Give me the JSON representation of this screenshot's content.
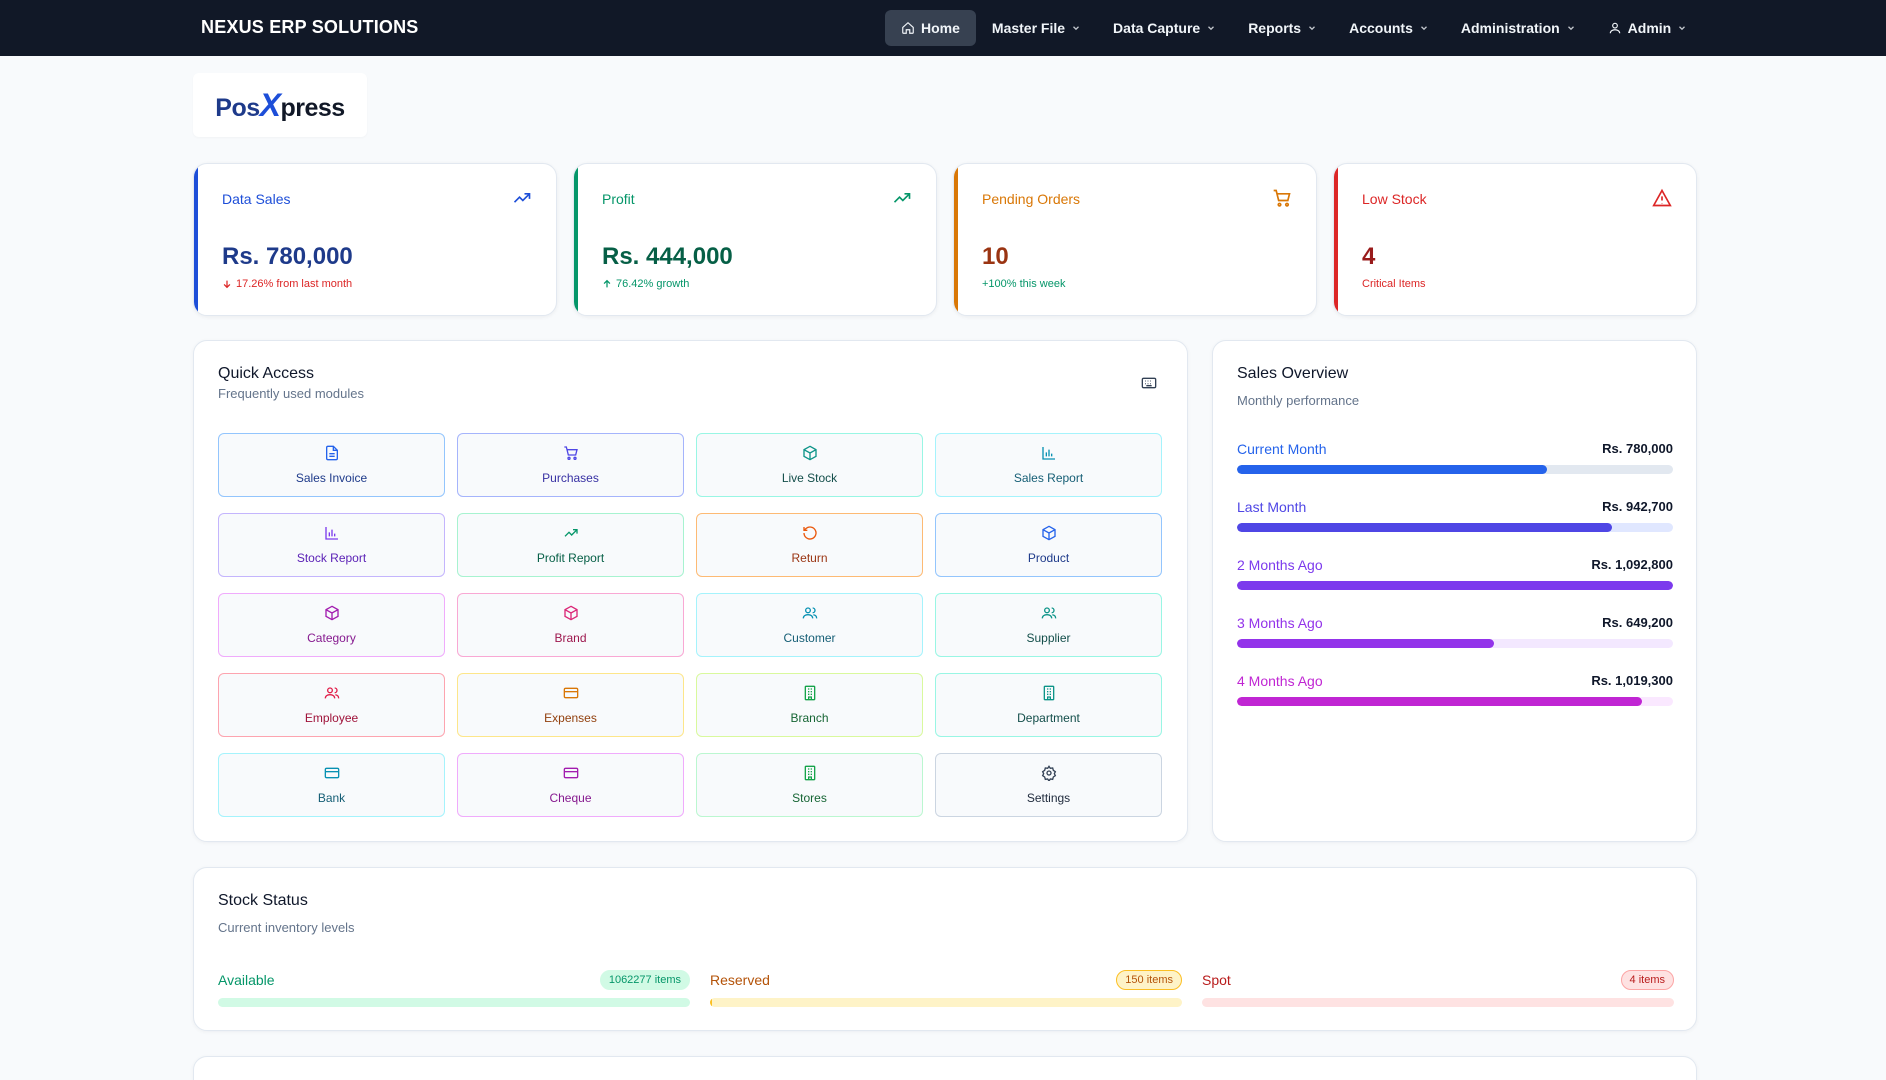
{
  "header": {
    "brand": "NEXUS ERP SOLUTIONS",
    "menu": [
      {
        "label": "Home",
        "icon": "home-icon",
        "active": true
      },
      {
        "label": "Master File"
      },
      {
        "label": "Data Capture"
      },
      {
        "label": "Reports"
      },
      {
        "label": "Accounts"
      },
      {
        "label": "Administration"
      }
    ],
    "user": {
      "label": "Admin",
      "icon": "user-icon"
    }
  },
  "logo": {
    "pos": "Pos",
    "x": "X",
    "press": "press"
  },
  "stats": [
    {
      "label": "Data Sales",
      "value": "Rs. 780,000",
      "sub": "17.26% from last month",
      "icon": "trending-up-icon",
      "color": "#1d4ed8"
    },
    {
      "label": "Profit",
      "value": "Rs. 444,000",
      "sub": "76.42% growth",
      "icon": "trending-up-icon",
      "color": "#059669"
    },
    {
      "label": "Pending Orders",
      "value": "10",
      "sub": "+100% this week",
      "icon": "cart-icon",
      "color": "#d97706"
    },
    {
      "label": "Low Stock",
      "value": "4",
      "sub": "Critical Items",
      "icon": "alert-triangle-icon",
      "color": "#dc2626"
    }
  ],
  "quick_access": {
    "title": "Quick Access",
    "subtitle": "Frequently used modules",
    "tiles": [
      {
        "label": "Sales Invoice",
        "icon": "file-icon"
      },
      {
        "label": "Purchases",
        "icon": "cart-icon"
      },
      {
        "label": "Live Stock",
        "icon": "box-icon"
      },
      {
        "label": "Sales Report",
        "icon": "bar-chart-icon"
      },
      {
        "label": "Stock Report",
        "icon": "bar-chart-icon"
      },
      {
        "label": "Profit Report",
        "icon": "trending-up-icon"
      },
      {
        "label": "Return",
        "icon": "rotate-icon"
      },
      {
        "label": "Product",
        "icon": "box-icon"
      },
      {
        "label": "Category",
        "icon": "box-icon"
      },
      {
        "label": "Brand",
        "icon": "box-icon"
      },
      {
        "label": "Customer",
        "icon": "users-icon"
      },
      {
        "label": "Supplier",
        "icon": "users-icon"
      },
      {
        "label": "Employee",
        "icon": "users-icon"
      },
      {
        "label": "Expenses",
        "icon": "credit-card-icon"
      },
      {
        "label": "Branch",
        "icon": "building-icon"
      },
      {
        "label": "Department",
        "icon": "building-icon"
      },
      {
        "label": "Bank",
        "icon": "credit-card-icon"
      },
      {
        "label": "Cheque",
        "icon": "credit-card-icon"
      },
      {
        "label": "Stores",
        "icon": "building-icon"
      },
      {
        "label": "Settings",
        "icon": "gear-icon"
      }
    ]
  },
  "sales_overview": {
    "title": "Sales Overview",
    "subtitle": "Monthly performance",
    "rows": [
      {
        "label": "Current Month",
        "value": "Rs. 780,000",
        "fraction": 0.71,
        "color": "#2563eb",
        "track": "#e2e8f0"
      },
      {
        "label": "Last Month",
        "value": "Rs. 942,700",
        "fraction": 0.86,
        "color": "#4f46e5",
        "track": "#e0e7ff"
      },
      {
        "label": "2 Months Ago",
        "value": "Rs. 1,092,800",
        "fraction": 1.0,
        "color": "#7c3aed",
        "track": "#ede9fe"
      },
      {
        "label": "3 Months Ago",
        "value": "Rs. 649,200",
        "fraction": 0.59,
        "color": "#9333ea",
        "track": "#f3e8ff"
      },
      {
        "label": "4 Months Ago",
        "value": "Rs. 1,019,300",
        "fraction": 0.93,
        "color": "#c026d3",
        "track": "#fae8ff"
      }
    ]
  },
  "stock_status": {
    "title": "Stock Status",
    "subtitle": "Current inventory levels",
    "items": [
      {
        "label": "Available",
        "badge": "1062277 items",
        "fraction": 1.0,
        "color": "#059669",
        "fill": "#d1fae5",
        "track": "#d1fae5"
      },
      {
        "label": "Reserved",
        "badge": "150 items",
        "fraction": 0.002,
        "color": "#b45309",
        "fill": "#fbbf24",
        "track": "#fef3c7"
      },
      {
        "label": "Spot",
        "badge": "4 items",
        "fraction": 0.0,
        "color": "#b91c1c",
        "fill": "#fca5a5",
        "track": "#fee2e2"
      }
    ]
  }
}
